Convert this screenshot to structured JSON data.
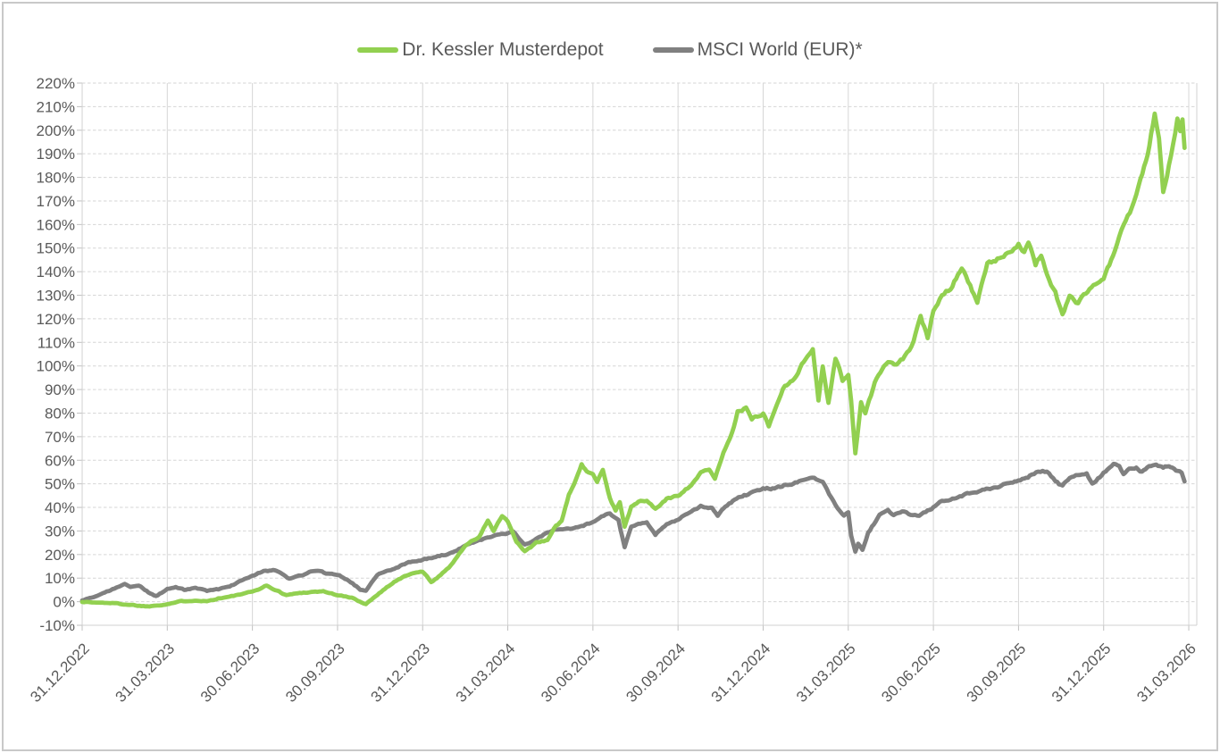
{
  "chart_data": {
    "type": "line",
    "title": "",
    "legend_position": "top",
    "grid": {
      "horizontal": "dashed",
      "vertical": "solid",
      "color": "#d6d6d6"
    },
    "axis_text_color": "#595959",
    "x_axis": {
      "unit": "months since 31.12.2022 (ticks every 3 months)",
      "tick_labels": [
        "31.12.2022",
        "31.03.2023",
        "30.06.2023",
        "30.09.2023",
        "31.12.2023",
        "31.03.2024",
        "30.06.2024",
        "30.09.2024",
        "31.12.2024",
        "31.03.2025",
        "30.06.2025",
        "30.09.2025",
        "31.12.2025",
        "31.03.2026"
      ],
      "label_rotation_deg": -45
    },
    "y_axis": {
      "min": -10,
      "max": 220,
      "step": 10,
      "suffix": "%"
    },
    "series": [
      {
        "name": "Dr. Kessler Musterdepot",
        "color": "#92d050",
        "points": [
          [
            0,
            0
          ],
          [
            0.5,
            -0.4
          ],
          [
            1,
            -0.5
          ],
          [
            1.6,
            -1.2
          ],
          [
            2.3,
            -2
          ],
          [
            3,
            -1
          ],
          [
            3.5,
            0.2
          ],
          [
            4,
            0.6
          ],
          [
            4.4,
            0.2
          ],
          [
            4.8,
            1.4
          ],
          [
            5.2,
            2.1
          ],
          [
            5.7,
            3.4
          ],
          [
            6,
            4.2
          ],
          [
            6.5,
            6.8
          ],
          [
            6.8,
            5
          ],
          [
            7.2,
            2.8
          ],
          [
            7.6,
            3.6
          ],
          [
            8,
            4.1
          ],
          [
            8.5,
            4.4
          ],
          [
            9,
            2.8
          ],
          [
            9.5,
            1.6
          ],
          [
            10,
            -1
          ],
          [
            10.4,
            3
          ],
          [
            11,
            8.5
          ],
          [
            11.5,
            11.5
          ],
          [
            12,
            12.8
          ],
          [
            12.3,
            8.4
          ],
          [
            12.7,
            12
          ],
          [
            13,
            15.5
          ],
          [
            13.5,
            24
          ],
          [
            14,
            27.5
          ],
          [
            14.3,
            34.5
          ],
          [
            14.5,
            30
          ],
          [
            14.8,
            36.4
          ],
          [
            15,
            33.8
          ],
          [
            15.3,
            25.5
          ],
          [
            15.6,
            21.2
          ],
          [
            16,
            25
          ],
          [
            16.4,
            26
          ],
          [
            16.7,
            32.5
          ],
          [
            16.9,
            34
          ],
          [
            17.15,
            45
          ],
          [
            17.4,
            52
          ],
          [
            17.6,
            58
          ],
          [
            17.78,
            55
          ],
          [
            18,
            54.5
          ],
          [
            18.15,
            51.4
          ],
          [
            18.35,
            56
          ],
          [
            18.6,
            44
          ],
          [
            18.8,
            38.5
          ],
          [
            18.95,
            42.5
          ],
          [
            19.12,
            31.8
          ],
          [
            19.35,
            40
          ],
          [
            19.6,
            42.5
          ],
          [
            19.9,
            42.8
          ],
          [
            20.2,
            39.4
          ],
          [
            20.6,
            43.5
          ],
          [
            21,
            45.1
          ],
          [
            21.4,
            48.9
          ],
          [
            21.8,
            54.5
          ],
          [
            22.1,
            56
          ],
          [
            22.3,
            52.5
          ],
          [
            22.6,
            63
          ],
          [
            22.9,
            72
          ],
          [
            23.1,
            80.5
          ],
          [
            23.4,
            82
          ],
          [
            23.6,
            77.5
          ],
          [
            24,
            80
          ],
          [
            24.2,
            74.5
          ],
          [
            24.7,
            90.5
          ],
          [
            25.1,
            95
          ],
          [
            25.5,
            103
          ],
          [
            25.75,
            107.6
          ],
          [
            25.95,
            85.6
          ],
          [
            26.1,
            100
          ],
          [
            26.3,
            84
          ],
          [
            26.55,
            103.5
          ],
          [
            26.8,
            94
          ],
          [
            27,
            96.2
          ],
          [
            27.1,
            85
          ],
          [
            27.25,
            62.5
          ],
          [
            27.45,
            84.8
          ],
          [
            27.6,
            80
          ],
          [
            28,
            95
          ],
          [
            28.4,
            101.9
          ],
          [
            28.7,
            100
          ],
          [
            29,
            104
          ],
          [
            29.3,
            110
          ],
          [
            29.55,
            120.5
          ],
          [
            29.8,
            112
          ],
          [
            30,
            124
          ],
          [
            30.3,
            130.3
          ],
          [
            30.6,
            133
          ],
          [
            31,
            142
          ],
          [
            31.3,
            134
          ],
          [
            31.55,
            127
          ],
          [
            31.9,
            143
          ],
          [
            32.4,
            146
          ],
          [
            32.7,
            149
          ],
          [
            33,
            151.5
          ],
          [
            33.2,
            148
          ],
          [
            33.35,
            152
          ],
          [
            33.6,
            143
          ],
          [
            33.8,
            147.5
          ],
          [
            34,
            139
          ],
          [
            34.3,
            131
          ],
          [
            34.55,
            121.6
          ],
          [
            34.8,
            130
          ],
          [
            35.1,
            126.5
          ],
          [
            35.5,
            133
          ],
          [
            36,
            137
          ],
          [
            36.4,
            149
          ],
          [
            36.7,
            159.5
          ],
          [
            37,
            167
          ],
          [
            37.3,
            179.5
          ],
          [
            37.55,
            189
          ],
          [
            37.8,
            207.2
          ],
          [
            37.95,
            196
          ],
          [
            38.1,
            172.8
          ],
          [
            38.3,
            185
          ],
          [
            38.45,
            194
          ],
          [
            38.6,
            204.5
          ],
          [
            38.7,
            199.5
          ],
          [
            38.78,
            204
          ],
          [
            38.85,
            192.5
          ]
        ]
      },
      {
        "name": "MSCI World (EUR)*",
        "color": "#808080",
        "points": [
          [
            0,
            0.5
          ],
          [
            0.4,
            2
          ],
          [
            1,
            4.7
          ],
          [
            1.5,
            7.8
          ],
          [
            1.7,
            6.5
          ],
          [
            2,
            6.8
          ],
          [
            2.4,
            3.5
          ],
          [
            2.6,
            2.3
          ],
          [
            3,
            5.3
          ],
          [
            3.3,
            6
          ],
          [
            3.6,
            5
          ],
          [
            4,
            5.8
          ],
          [
            4.4,
            4.6
          ],
          [
            4.8,
            5.2
          ],
          [
            5.2,
            6.4
          ],
          [
            5.6,
            9
          ],
          [
            6,
            11
          ],
          [
            6.4,
            12.9
          ],
          [
            6.8,
            13.5
          ],
          [
            7.3,
            9.7
          ],
          [
            7.7,
            11
          ],
          [
            8,
            12.5
          ],
          [
            8.3,
            13.3
          ],
          [
            8.6,
            12
          ],
          [
            9,
            11.6
          ],
          [
            9.4,
            9.1
          ],
          [
            9.8,
            5.2
          ],
          [
            10,
            4.8
          ],
          [
            10.4,
            11.6
          ],
          [
            11,
            14.1
          ],
          [
            11.5,
            16.7
          ],
          [
            12,
            17.8
          ],
          [
            12.4,
            19
          ],
          [
            13,
            20.5
          ],
          [
            13.5,
            23.6
          ],
          [
            14,
            26.1
          ],
          [
            14.5,
            28
          ],
          [
            15,
            28.9
          ],
          [
            15.2,
            29.9
          ],
          [
            15.6,
            24.2
          ],
          [
            16,
            26.5
          ],
          [
            16.4,
            29.5
          ],
          [
            16.8,
            30.7
          ],
          [
            17.2,
            31
          ],
          [
            17.6,
            31.8
          ],
          [
            18,
            33.7
          ],
          [
            18.3,
            36.2
          ],
          [
            18.6,
            37.5
          ],
          [
            18.9,
            34.5
          ],
          [
            19.12,
            23.2
          ],
          [
            19.35,
            31.8
          ],
          [
            19.6,
            33
          ],
          [
            19.9,
            33.7
          ],
          [
            20.2,
            28.5
          ],
          [
            20.6,
            33
          ],
          [
            21,
            35
          ],
          [
            21.4,
            38.1
          ],
          [
            21.8,
            40.5
          ],
          [
            22.2,
            40
          ],
          [
            22.4,
            36.9
          ],
          [
            22.8,
            41.8
          ],
          [
            23.2,
            44.5
          ],
          [
            23.6,
            46.2
          ],
          [
            24,
            48.2
          ],
          [
            24.4,
            48
          ],
          [
            24.8,
            49.6
          ],
          [
            25.2,
            50.5
          ],
          [
            25.5,
            52
          ],
          [
            25.8,
            52.7
          ],
          [
            26.1,
            50.5
          ],
          [
            26.4,
            44
          ],
          [
            26.7,
            38.5
          ],
          [
            26.85,
            36.8
          ],
          [
            27,
            38.2
          ],
          [
            27.1,
            28
          ],
          [
            27.25,
            21
          ],
          [
            27.35,
            24.5
          ],
          [
            27.5,
            21.8
          ],
          [
            27.7,
            29.3
          ],
          [
            27.9,
            33
          ],
          [
            28.1,
            36.7
          ],
          [
            28.4,
            38.5
          ],
          [
            28.6,
            36.9
          ],
          [
            28.9,
            38.3
          ],
          [
            29.2,
            37
          ],
          [
            29.5,
            36.5
          ],
          [
            29.8,
            38.5
          ],
          [
            30,
            40
          ],
          [
            30.3,
            42.5
          ],
          [
            30.6,
            43.2
          ],
          [
            31,
            45
          ],
          [
            31.4,
            46.5
          ],
          [
            31.8,
            47.5
          ],
          [
            32.2,
            48.5
          ],
          [
            32.6,
            50
          ],
          [
            33,
            51.4
          ],
          [
            33.4,
            53.4
          ],
          [
            33.7,
            55
          ],
          [
            34,
            55.3
          ],
          [
            34.3,
            51
          ],
          [
            34.55,
            48.9
          ],
          [
            34.8,
            52.5
          ],
          [
            35.1,
            54
          ],
          [
            35.4,
            54.5
          ],
          [
            35.6,
            50.1
          ],
          [
            36,
            54.5
          ],
          [
            36.35,
            58.5
          ],
          [
            36.55,
            57
          ],
          [
            36.7,
            54.5
          ],
          [
            36.9,
            56.8
          ],
          [
            37.15,
            57
          ],
          [
            37.35,
            55
          ],
          [
            37.6,
            57.5
          ],
          [
            37.85,
            58
          ],
          [
            38.1,
            57
          ],
          [
            38.3,
            57.5
          ],
          [
            38.55,
            55.5
          ],
          [
            38.75,
            54.5
          ],
          [
            38.85,
            51
          ]
        ]
      }
    ]
  },
  "colors": {
    "background": "#ffffff",
    "frame_border": "#c9c9c9",
    "grid": "#d6d6d6",
    "axis_text": "#595959",
    "series_green": "#92d050",
    "series_gray": "#808080"
  }
}
